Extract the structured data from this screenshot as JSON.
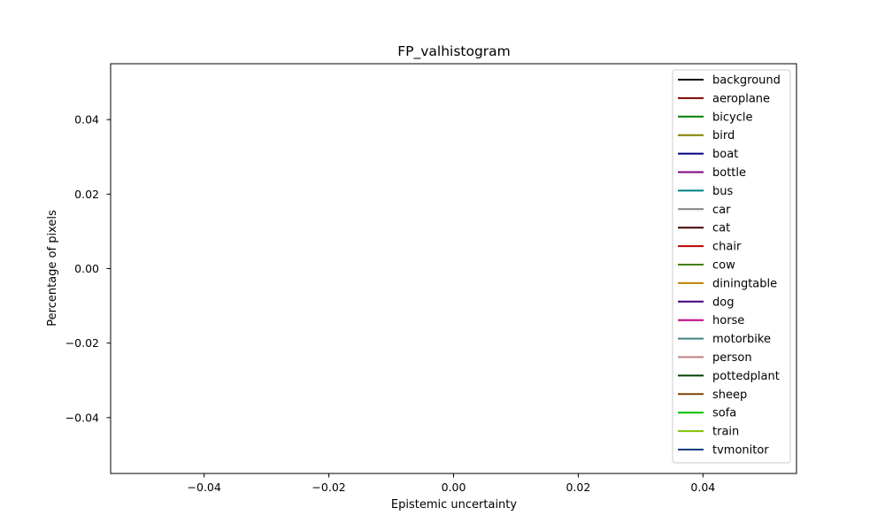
{
  "chart_data": {
    "type": "line",
    "title": "FP_valhistogram",
    "xlabel": "Epistemic uncertainty",
    "ylabel": "Percentage of pixels",
    "xlim": [
      -0.055,
      0.055
    ],
    "ylim": [
      -0.055,
      0.055
    ],
    "xticks": [
      -0.04,
      -0.02,
      0.0,
      0.02,
      0.04
    ],
    "yticks": [
      -0.04,
      -0.02,
      0.0,
      0.02,
      0.04
    ],
    "xtick_labels": [
      "−0.04",
      "−0.02",
      "0.00",
      "0.02",
      "0.04"
    ],
    "ytick_labels": [
      "−0.04",
      "−0.02",
      "0.00",
      "0.02",
      "0.04"
    ],
    "grid": false,
    "legend_position": "top-right",
    "series": [
      {
        "name": "background",
        "color": "#000000",
        "values": []
      },
      {
        "name": "aeroplane",
        "color": "#800000",
        "values": []
      },
      {
        "name": "bicycle",
        "color": "#008000",
        "values": []
      },
      {
        "name": "bird",
        "color": "#808000",
        "values": []
      },
      {
        "name": "boat",
        "color": "#000080",
        "values": []
      },
      {
        "name": "bottle",
        "color": "#800080",
        "values": []
      },
      {
        "name": "bus",
        "color": "#008080",
        "values": []
      },
      {
        "name": "car",
        "color": "#808080",
        "values": []
      },
      {
        "name": "cat",
        "color": "#400000",
        "values": []
      },
      {
        "name": "chair",
        "color": "#c00000",
        "values": []
      },
      {
        "name": "cow",
        "color": "#408000",
        "values": []
      },
      {
        "name": "diningtable",
        "color": "#c08000",
        "values": []
      },
      {
        "name": "dog",
        "color": "#400080",
        "values": []
      },
      {
        "name": "horse",
        "color": "#c00080",
        "values": []
      },
      {
        "name": "motorbike",
        "color": "#408080",
        "values": []
      },
      {
        "name": "person",
        "color": "#c08080",
        "values": []
      },
      {
        "name": "pottedplant",
        "color": "#004000",
        "values": []
      },
      {
        "name": "sheep",
        "color": "#804000",
        "values": []
      },
      {
        "name": "sofa",
        "color": "#00c000",
        "values": []
      },
      {
        "name": "train",
        "color": "#80c000",
        "values": []
      },
      {
        "name": "tvmonitor",
        "color": "#004080",
        "values": []
      }
    ]
  }
}
